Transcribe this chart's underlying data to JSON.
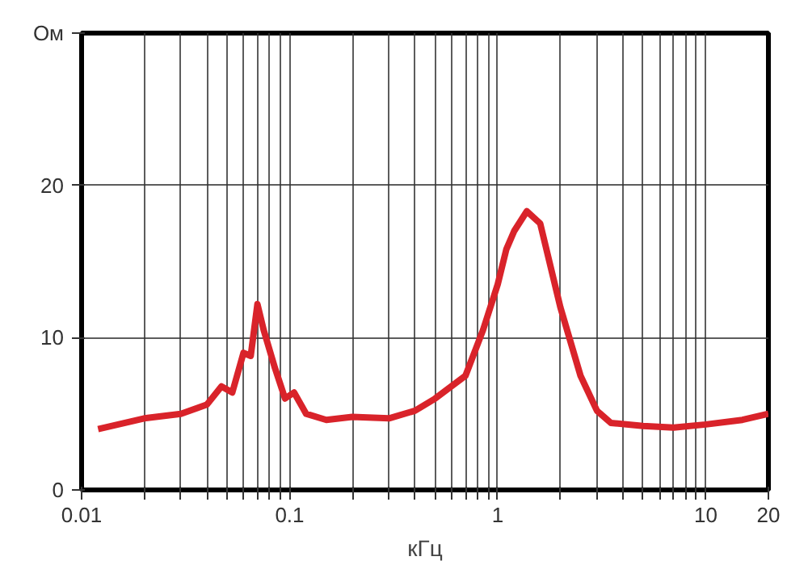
{
  "chart_data": {
    "type": "line",
    "xlabel": "кГц",
    "log": "x",
    "grid": true,
    "line_style": "solid",
    "xlim": [
      0.01,
      20
    ],
    "ylim": [
      0,
      30
    ],
    "xticks": [
      0.01,
      {
        "value": 0.02,
        "label": null
      },
      {
        "value": 0.03,
        "label": null
      },
      {
        "value": 0.04,
        "label": null
      },
      {
        "value": 0.05,
        "label": null
      },
      {
        "value": 0.06,
        "label": null
      },
      {
        "value": 0.07,
        "label": null
      },
      {
        "value": 0.08,
        "label": null
      },
      {
        "value": 0.09,
        "label": null
      },
      0.1,
      {
        "value": 0.2,
        "label": null
      },
      {
        "value": 0.3,
        "label": null
      },
      {
        "value": 0.4,
        "label": null
      },
      {
        "value": 0.5,
        "label": null
      },
      {
        "value": 0.6,
        "label": null
      },
      {
        "value": 0.7,
        "label": null
      },
      {
        "value": 0.8,
        "label": null
      },
      {
        "value": 0.9,
        "label": null
      },
      1,
      {
        "value": 2,
        "label": null
      },
      {
        "value": 3,
        "label": null
      },
      {
        "value": 4,
        "label": null
      },
      {
        "value": 5,
        "label": null
      },
      {
        "value": 6,
        "label": null
      },
      {
        "value": 7,
        "label": null
      },
      {
        "value": 8,
        "label": null
      },
      {
        "value": 9,
        "label": null
      },
      10,
      20
    ],
    "yticks": [
      0,
      10,
      20,
      {
        "value": 30,
        "label": "Ом"
      }
    ],
    "series": [
      {
        "color": "#d9232a",
        "x": [
          0.012,
          0.02,
          0.03,
          0.04,
          0.047,
          0.053,
          0.06,
          0.065,
          0.07,
          0.075,
          0.085,
          0.095,
          0.105,
          0.12,
          0.15,
          0.2,
          0.3,
          0.4,
          0.5,
          0.7,
          0.85,
          1.0,
          1.1,
          1.2,
          1.38,
          1.6,
          2.0,
          2.5,
          3.0,
          3.5,
          5,
          7,
          10,
          15,
          20
        ],
        "values": [
          4.0,
          4.7,
          5.0,
          5.6,
          6.8,
          6.4,
          9.0,
          8.8,
          12.2,
          10.5,
          8.0,
          6.0,
          6.4,
          5.0,
          4.6,
          4.8,
          4.7,
          5.2,
          6.0,
          7.5,
          10.5,
          13.5,
          15.8,
          17.0,
          18.3,
          17.5,
          12.0,
          7.5,
          5.2,
          4.4,
          4.2,
          4.1,
          4.3,
          4.6,
          5.0
        ]
      }
    ]
  }
}
